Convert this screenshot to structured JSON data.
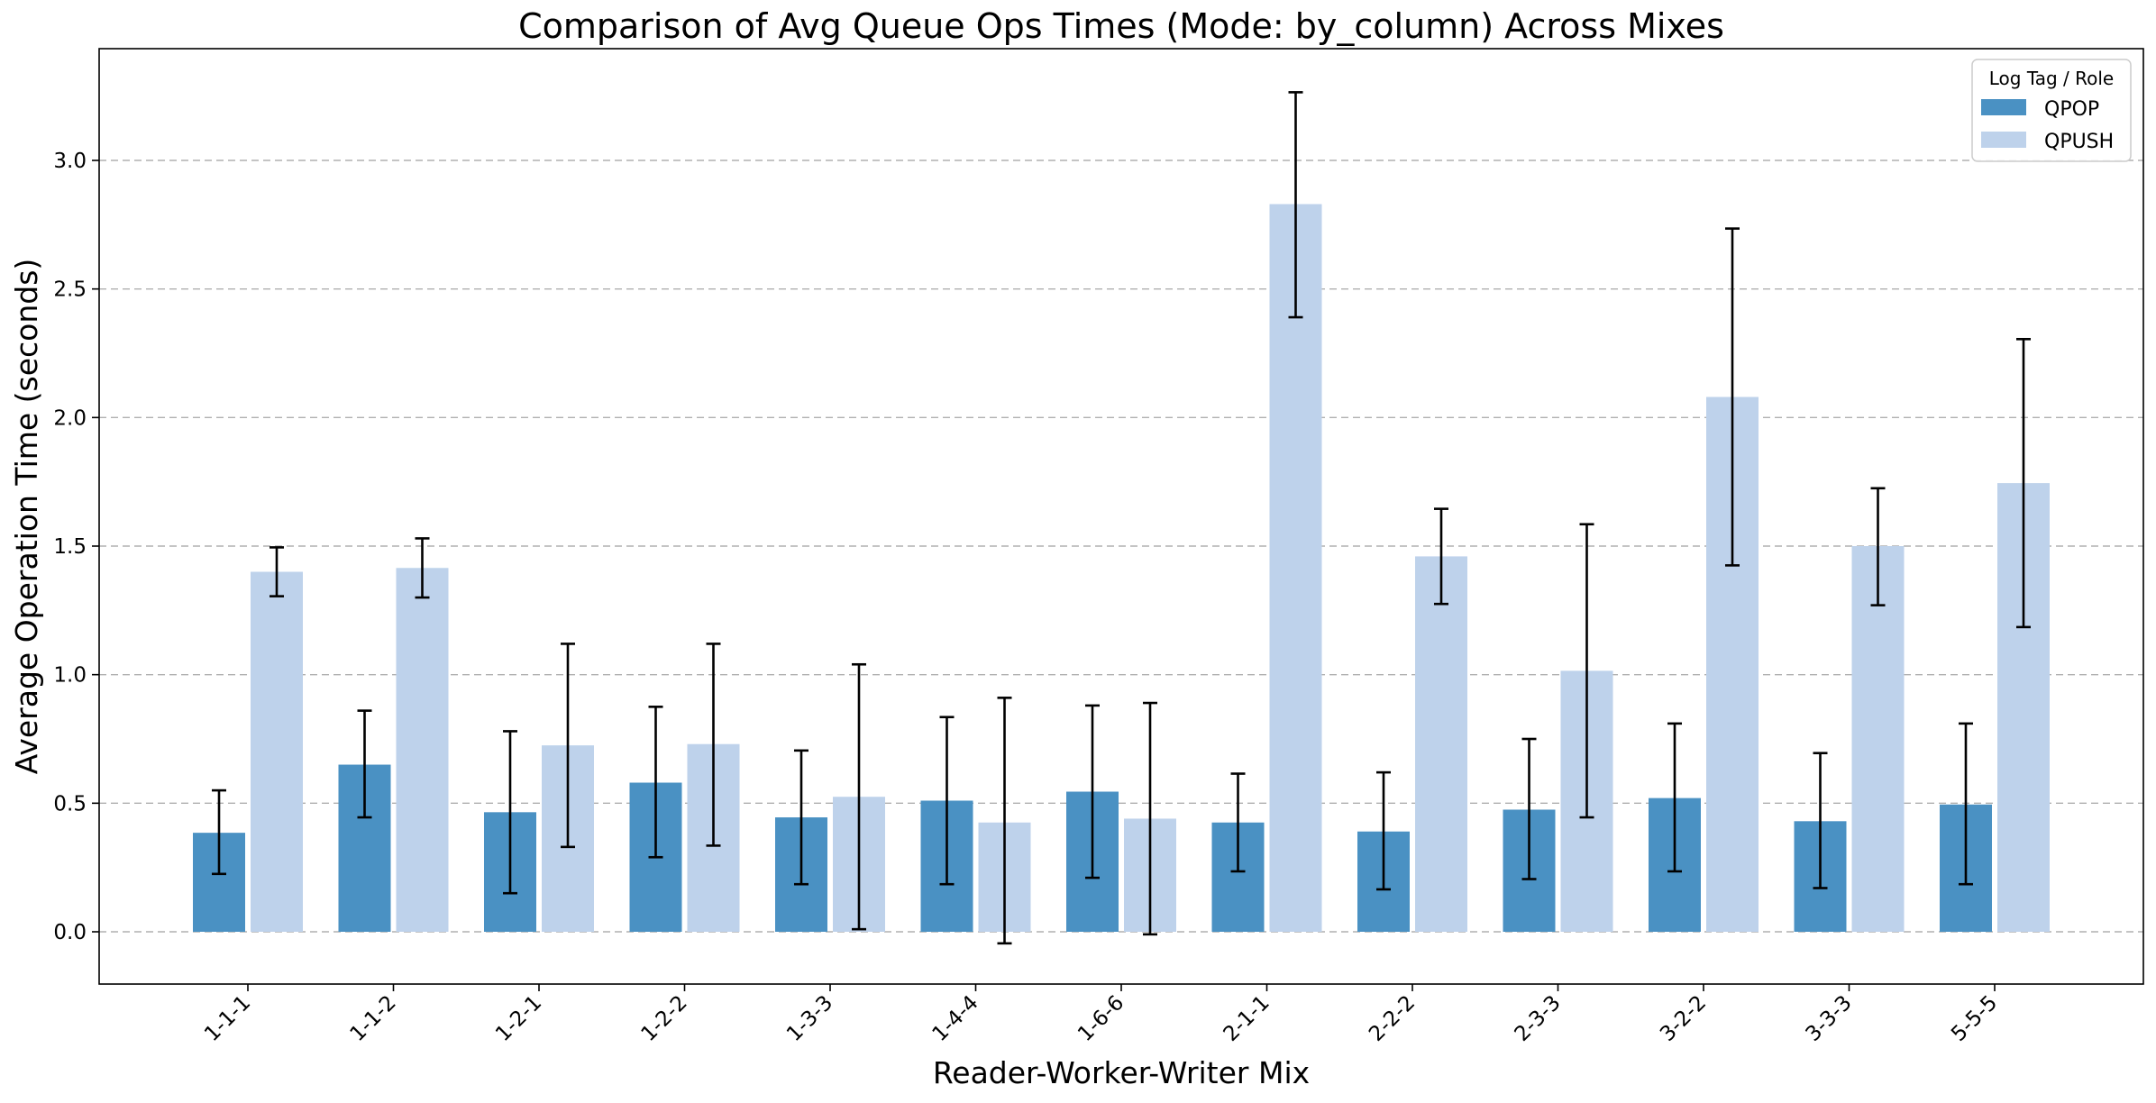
{
  "chart_data": {
    "type": "bar",
    "title": "Comparison of Avg Queue Ops Times (Mode: by_column) Across Mixes",
    "xlabel": "Reader-Worker-Writer Mix",
    "ylabel": "Average Operation Time (seconds)",
    "ylim": [
      -0.2,
      3.35
    ],
    "yticks": [
      "0.0",
      "0.5",
      "1.0",
      "1.5",
      "2.0",
      "2.5",
      "3.0"
    ],
    "grid": "y-axis dashed",
    "legend": {
      "title": "Log Tag / Role",
      "placement": "top-right"
    },
    "categories": [
      "1-1-1",
      "1-1-2",
      "1-2-1",
      "1-2-2",
      "1-3-3",
      "1-4-4",
      "1-6-6",
      "2-1-1",
      "2-2-2",
      "2-3-3",
      "3-2-2",
      "3-3-3",
      "5-5-5"
    ],
    "series": [
      {
        "name": "QPOP",
        "color": "#4a91c3",
        "values": [
          0.385,
          0.65,
          0.465,
          0.58,
          0.445,
          0.51,
          0.545,
          0.425,
          0.39,
          0.475,
          0.52,
          0.43,
          0.495
        ],
        "error_low": [
          0.225,
          0.445,
          0.15,
          0.29,
          0.185,
          0.185,
          0.21,
          0.235,
          0.165,
          0.205,
          0.235,
          0.17,
          0.185
        ],
        "error_high": [
          0.55,
          0.86,
          0.78,
          0.875,
          0.705,
          0.835,
          0.88,
          0.615,
          0.62,
          0.75,
          0.81,
          0.695,
          0.81
        ]
      },
      {
        "name": "QPUSH",
        "color": "#bed2eb",
        "values": [
          1.4,
          1.415,
          0.725,
          0.73,
          0.525,
          0.425,
          0.44,
          2.83,
          1.46,
          1.015,
          2.08,
          1.5,
          1.745
        ],
        "error_low": [
          1.305,
          1.3,
          0.33,
          0.335,
          0.01,
          -0.045,
          -0.01,
          2.39,
          1.275,
          0.445,
          1.425,
          1.27,
          1.185
        ],
        "error_high": [
          1.495,
          1.53,
          1.12,
          1.12,
          1.04,
          0.91,
          0.89,
          3.265,
          1.645,
          1.585,
          2.735,
          1.725,
          2.305
        ]
      }
    ]
  }
}
